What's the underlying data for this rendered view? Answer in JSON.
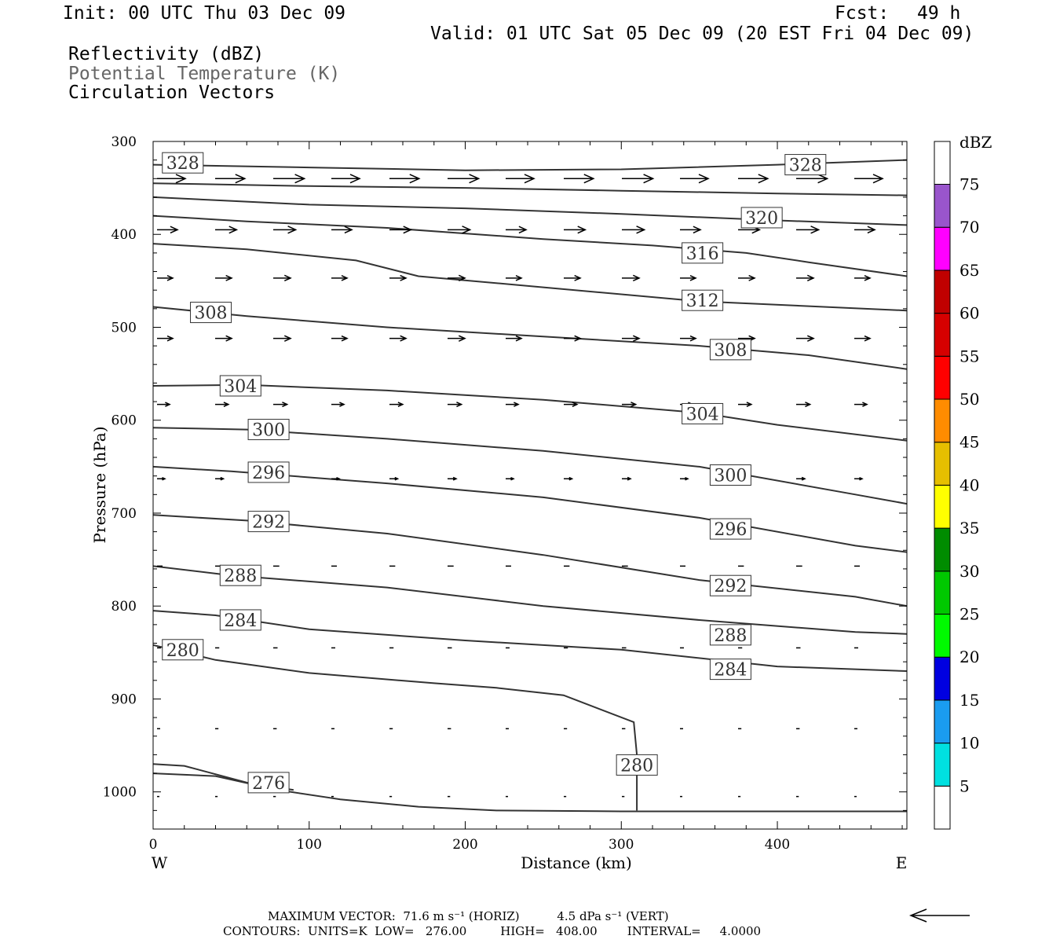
{
  "header": {
    "init": "Init: 00 UTC Thu 03 Dec 09",
    "fcst_label": "Fcst:",
    "fcst_value": "49 h",
    "valid": "Valid: 01 UTC Sat 05 Dec 09 (20 EST Fri 04 Dec 09)",
    "field1": "Reflectivity (dBZ)",
    "field2": "Potential Temperature (K)",
    "field3": "Circulation Vectors"
  },
  "chart_data": {
    "type": "line",
    "title": "",
    "xlabel": "Distance (km)",
    "ylabel": "Pressure (hPa)",
    "xlim": [
      0,
      483
    ],
    "ylim": [
      300,
      1040
    ],
    "y_reversed": true,
    "x_ticks": [
      "0",
      "100",
      "200",
      "300",
      "400"
    ],
    "x_tick_values": [
      0,
      100,
      200,
      300,
      400
    ],
    "y_ticks": [
      "300",
      "400",
      "500",
      "600",
      "700",
      "800",
      "900",
      "1000"
    ],
    "y_tick_values": [
      300,
      400,
      500,
      600,
      700,
      800,
      900,
      1000
    ],
    "x_end_labels": {
      "left": "W",
      "right": "E"
    },
    "contours": [
      {
        "name": "276",
        "points": [
          [
            0,
            980
          ],
          [
            40,
            983
          ],
          [
            80,
            998
          ],
          [
            120,
            1008
          ],
          [
            170,
            1016
          ],
          [
            220,
            1020
          ],
          [
            300,
            1021
          ],
          [
            483,
            1021
          ]
        ]
      },
      {
        "name": "276b",
        "points": [
          [
            0,
            970
          ],
          [
            20,
            972
          ],
          [
            60,
            990
          ],
          [
            90,
            998
          ]
        ]
      },
      {
        "name": "280",
        "points": [
          [
            0,
            842
          ],
          [
            40,
            858
          ],
          [
            100,
            872
          ],
          [
            180,
            883
          ],
          [
            220,
            888
          ],
          [
            263,
            896
          ],
          [
            308,
            925
          ],
          [
            310,
            960
          ],
          [
            310,
            1020
          ]
        ]
      },
      {
        "name": "284",
        "points": [
          [
            0,
            805
          ],
          [
            40,
            810
          ],
          [
            100,
            825
          ],
          [
            200,
            837
          ],
          [
            300,
            847
          ],
          [
            400,
            865
          ],
          [
            483,
            870
          ]
        ]
      },
      {
        "name": "288",
        "points": [
          [
            0,
            757
          ],
          [
            50,
            767
          ],
          [
            150,
            780
          ],
          [
            250,
            800
          ],
          [
            350,
            815
          ],
          [
            450,
            828
          ],
          [
            483,
            830
          ]
        ]
      },
      {
        "name": "292",
        "points": [
          [
            0,
            702
          ],
          [
            60,
            708
          ],
          [
            150,
            722
          ],
          [
            250,
            745
          ],
          [
            350,
            772
          ],
          [
            450,
            790
          ],
          [
            483,
            800
          ]
        ]
      },
      {
        "name": "296",
        "points": [
          [
            0,
            650
          ],
          [
            50,
            655
          ],
          [
            150,
            668
          ],
          [
            250,
            683
          ],
          [
            350,
            705
          ],
          [
            450,
            735
          ],
          [
            483,
            742
          ]
        ]
      },
      {
        "name": "300",
        "points": [
          [
            0,
            608
          ],
          [
            60,
            610
          ],
          [
            150,
            620
          ],
          [
            250,
            633
          ],
          [
            350,
            650
          ],
          [
            450,
            680
          ],
          [
            483,
            690
          ]
        ]
      },
      {
        "name": "304",
        "points": [
          [
            0,
            563
          ],
          [
            60,
            562
          ],
          [
            150,
            568
          ],
          [
            250,
            578
          ],
          [
            350,
            592
          ],
          [
            400,
            605
          ],
          [
            483,
            622
          ]
        ]
      },
      {
        "name": "308",
        "points": [
          [
            0,
            478
          ],
          [
            60,
            488
          ],
          [
            150,
            500
          ],
          [
            250,
            510
          ],
          [
            350,
            520
          ],
          [
            420,
            530
          ],
          [
            483,
            545
          ]
        ]
      },
      {
        "name": "312",
        "points": [
          [
            0,
            410
          ],
          [
            60,
            416
          ],
          [
            130,
            428
          ],
          [
            170,
            445
          ],
          [
            250,
            457
          ],
          [
            350,
            472
          ],
          [
            483,
            482
          ]
        ]
      },
      {
        "name": "316",
        "points": [
          [
            0,
            380
          ],
          [
            60,
            386
          ],
          [
            150,
            393
          ],
          [
            250,
            405
          ],
          [
            320,
            412
          ],
          [
            380,
            420
          ],
          [
            420,
            430
          ],
          [
            483,
            445
          ]
        ]
      },
      {
        "name": "320",
        "points": [
          [
            0,
            360
          ],
          [
            100,
            368
          ],
          [
            200,
            372
          ],
          [
            300,
            378
          ],
          [
            400,
            385
          ],
          [
            483,
            390
          ]
        ]
      },
      {
        "name": "324",
        "points": [
          [
            0,
            345
          ],
          [
            100,
            348
          ],
          [
            200,
            350
          ],
          [
            300,
            353
          ],
          [
            400,
            356
          ],
          [
            483,
            358
          ]
        ]
      },
      {
        "name": "328",
        "points": [
          [
            0,
            325
          ],
          [
            100,
            328
          ],
          [
            200,
            331
          ],
          [
            300,
            330
          ],
          [
            400,
            325
          ],
          [
            483,
            320
          ]
        ]
      }
    ],
    "contour_labels": [
      {
        "text": "328",
        "x": 19,
        "p": 323
      },
      {
        "text": "328",
        "x": 418,
        "p": 325
      },
      {
        "text": "320",
        "x": 390,
        "p": 382
      },
      {
        "text": "316",
        "x": 352,
        "p": 420
      },
      {
        "text": "312",
        "x": 352,
        "p": 471
      },
      {
        "text": "308",
        "x": 37,
        "p": 484
      },
      {
        "text": "308",
        "x": 370,
        "p": 524
      },
      {
        "text": "304",
        "x": 56,
        "p": 563
      },
      {
        "text": "304",
        "x": 352,
        "p": 593
      },
      {
        "text": "300",
        "x": 74,
        "p": 610
      },
      {
        "text": "300",
        "x": 370,
        "p": 659
      },
      {
        "text": "296",
        "x": 74,
        "p": 656
      },
      {
        "text": "296",
        "x": 370,
        "p": 717
      },
      {
        "text": "292",
        "x": 74,
        "p": 709
      },
      {
        "text": "292",
        "x": 370,
        "p": 778
      },
      {
        "text": "288",
        "x": 56,
        "p": 767
      },
      {
        "text": "288",
        "x": 370,
        "p": 831
      },
      {
        "text": "284",
        "x": 56,
        "p": 815
      },
      {
        "text": "284",
        "x": 370,
        "p": 868
      },
      {
        "text": "280",
        "x": 19,
        "p": 847
      },
      {
        "text": "280",
        "x": 310,
        "p": 971
      },
      {
        "text": "276",
        "x": 74,
        "p": 990
      }
    ],
    "vector_rows": [
      {
        "p": 340,
        "len": 36
      },
      {
        "p": 395,
        "len": 26
      },
      {
        "p": 447,
        "len": 20
      },
      {
        "p": 512,
        "len": 20
      },
      {
        "p": 583,
        "len": 16
      },
      {
        "p": 663,
        "len": 10
      },
      {
        "p": 757,
        "len": 7
      },
      {
        "p": 845,
        "len": 5
      },
      {
        "p": 932,
        "len": 4
      },
      {
        "p": 1005,
        "len": 3
      }
    ],
    "colorbar": {
      "label": "dBZ",
      "levels": [
        "5",
        "10",
        "15",
        "20",
        "25",
        "30",
        "35",
        "40",
        "45",
        "50",
        "55",
        "60",
        "65",
        "70",
        "75"
      ],
      "colors": [
        "#00e0e0",
        "#1a9cf0",
        "#0000e0",
        "#00fa00",
        "#00c800",
        "#008c00",
        "#ffff00",
        "#e6bf00",
        "#ff8c00",
        "#ff0000",
        "#d60000",
        "#c00000",
        "#ff00ff",
        "#9955cc",
        "#ffffff"
      ]
    }
  },
  "footer": {
    "max_vector": "MAXIMUM VECTOR:  71.6 m s⁻¹ (HORIZ)          4.5 dPa s⁻¹ (VERT)",
    "contours": "CONTOURS:  UNITS=K  LOW=   276.00         HIGH=   408.00        INTERVAL=     4.0000"
  }
}
